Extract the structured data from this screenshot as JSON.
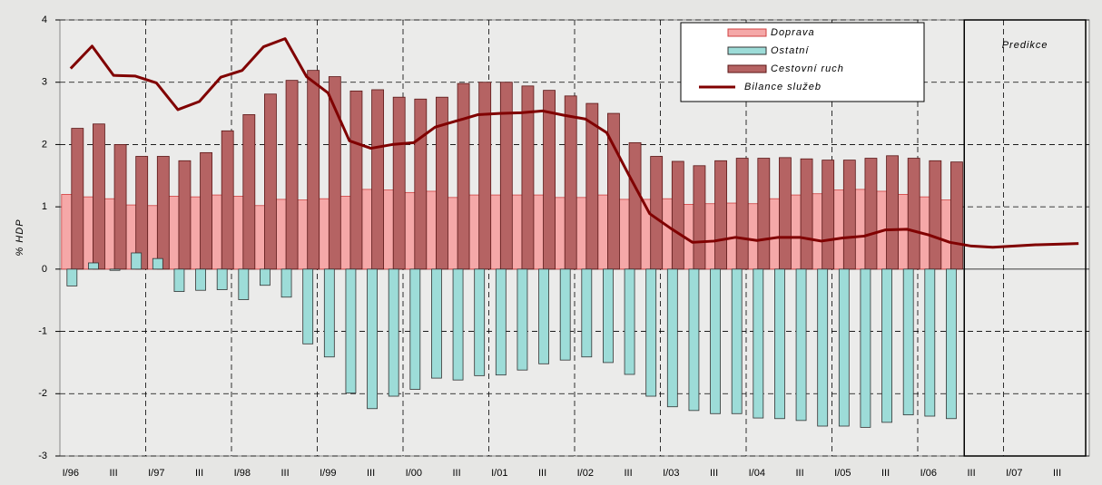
{
  "chart_data": {
    "type": "bar",
    "y_label": "% HDP",
    "annotation": "Predikce",
    "categories": [
      "I/96",
      null,
      "III",
      null,
      "I/97",
      null,
      "III",
      null,
      "I/98",
      null,
      "III",
      null,
      "I/99",
      null,
      "III",
      null,
      "I/00",
      null,
      "III",
      null,
      "I/01",
      null,
      "III",
      null,
      "I/02",
      null,
      "III",
      null,
      "I/03",
      null,
      "III",
      null,
      "I/04",
      null,
      "III",
      null,
      "I/05",
      null,
      "III",
      null,
      "I/06",
      null,
      "III",
      null,
      "I/07",
      null,
      "III",
      null
    ],
    "series": [
      {
        "name": "Doprava",
        "type": "bar",
        "color": "#f5a8a8",
        "values": [
          1.2,
          1.16,
          1.13,
          1.03,
          1.02,
          1.17,
          1.16,
          1.19,
          1.17,
          1.02,
          1.12,
          1.11,
          1.13,
          1.17,
          1.28,
          1.27,
          1.23,
          1.25,
          1.15,
          1.19,
          1.19,
          1.19,
          1.19,
          1.15,
          1.15,
          1.19,
          1.12,
          1.12,
          1.13,
          1.04,
          1.05,
          1.06,
          1.05,
          1.13,
          1.19,
          1.21,
          1.27,
          1.28,
          1.25,
          1.2,
          1.16,
          1.11,
          null,
          null,
          null,
          null,
          null,
          null
        ]
      },
      {
        "name": "Ostatní",
        "type": "bar",
        "color": "#9ddcd8",
        "values": [
          -0.27,
          0.1,
          -0.02,
          0.26,
          0.17,
          -0.36,
          -0.34,
          -0.33,
          -0.49,
          -0.26,
          -0.45,
          -1.2,
          -1.41,
          -1.99,
          -2.24,
          -2.04,
          -1.93,
          -1.75,
          -1.78,
          -1.71,
          -1.7,
          -1.62,
          -1.52,
          -1.46,
          -1.41,
          -1.5,
          -1.69,
          -2.04,
          -2.21,
          -2.27,
          -2.32,
          -2.32,
          -2.39,
          -2.4,
          -2.43,
          -2.52,
          -2.52,
          -2.54,
          -2.46,
          -2.34,
          -2.36,
          -2.4,
          null,
          null,
          null,
          null,
          null,
          null
        ]
      },
      {
        "name": "Cestovní ruch",
        "type": "bar",
        "color": "#b56363",
        "values": [
          2.26,
          2.33,
          2.0,
          1.81,
          1.81,
          1.74,
          1.87,
          2.22,
          2.48,
          2.81,
          3.03,
          3.19,
          3.09,
          2.86,
          2.88,
          2.76,
          2.73,
          2.76,
          2.98,
          3.0,
          3.0,
          2.94,
          2.87,
          2.78,
          2.66,
          2.5,
          2.03,
          1.81,
          1.73,
          1.66,
          1.74,
          1.78,
          1.78,
          1.79,
          1.77,
          1.75,
          1.75,
          1.78,
          1.82,
          1.78,
          1.74,
          1.72,
          null,
          null,
          null,
          null,
          null,
          null
        ]
      },
      {
        "name": "Bilance služeb",
        "type": "line",
        "color": "#800000",
        "values": [
          3.22,
          3.58,
          3.11,
          3.1,
          2.99,
          2.56,
          2.69,
          3.08,
          3.19,
          3.57,
          3.7,
          3.09,
          2.83,
          2.06,
          1.94,
          2.0,
          2.03,
          2.28,
          2.38,
          2.48,
          2.5,
          2.51,
          2.54,
          2.47,
          2.41,
          2.19,
          1.53,
          0.89,
          0.65,
          0.43,
          0.45,
          0.51,
          0.46,
          0.51,
          0.51,
          0.45,
          0.5,
          0.53,
          0.63,
          0.64,
          0.55,
          0.43,
          0.37,
          0.35,
          0.37,
          0.39,
          0.4,
          0.41
        ]
      }
    ],
    "ylim": [
      -3,
      4
    ],
    "yticks": [
      -3,
      -2,
      -1,
      0,
      1,
      2,
      3,
      4
    ],
    "grid": true
  }
}
